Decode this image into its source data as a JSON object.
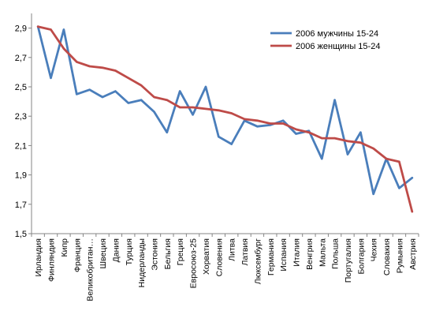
{
  "chart_data": {
    "type": "line",
    "title": "",
    "xlabel": "",
    "ylabel": "",
    "ylim": [
      1.5,
      3.0
    ],
    "yticks": [
      "1,5",
      "1,7",
      "1,9",
      "2,1",
      "2,3",
      "2,5",
      "2,7",
      "2,9"
    ],
    "grid": false,
    "legend_position": "top-right",
    "categories": [
      "Ирландия",
      "Финляндия",
      "Кипр",
      "Франция",
      "Великобритан…",
      "Швеция",
      "Дания",
      "Турция",
      "Нидерланды",
      "Эстония",
      "Бельгия",
      "Греция",
      "Евросоюз-25",
      "Хорватия",
      "Словения",
      "Литва",
      "Латвия",
      "Люксембург",
      "Германия",
      "Испания",
      "Италия",
      "Венгрия",
      "Мальта",
      "Польша",
      "Португалия",
      "Болгария",
      "Чехия",
      "Словакия",
      "Румыния",
      "Австрия"
    ],
    "series": [
      {
        "name": "2006 мужчины 15-24",
        "color": "#4a7ebb",
        "values": [
          2.91,
          2.56,
          2.89,
          2.45,
          2.48,
          2.43,
          2.47,
          2.39,
          2.41,
          2.33,
          2.19,
          2.47,
          2.31,
          2.5,
          2.16,
          2.11,
          2.27,
          2.23,
          2.24,
          2.27,
          2.18,
          2.2,
          2.01,
          2.41,
          2.04,
          2.19,
          1.77,
          2.01,
          1.81,
          1.88
        ]
      },
      {
        "name": "2006 женщины 15-24",
        "color": "#be4b48",
        "values": [
          2.91,
          2.89,
          2.76,
          2.67,
          2.64,
          2.63,
          2.61,
          2.56,
          2.51,
          2.43,
          2.41,
          2.36,
          2.36,
          2.35,
          2.34,
          2.32,
          2.28,
          2.27,
          2.25,
          2.25,
          2.21,
          2.19,
          2.15,
          2.15,
          2.13,
          2.12,
          2.08,
          2.01,
          1.99,
          1.65
        ]
      }
    ]
  }
}
